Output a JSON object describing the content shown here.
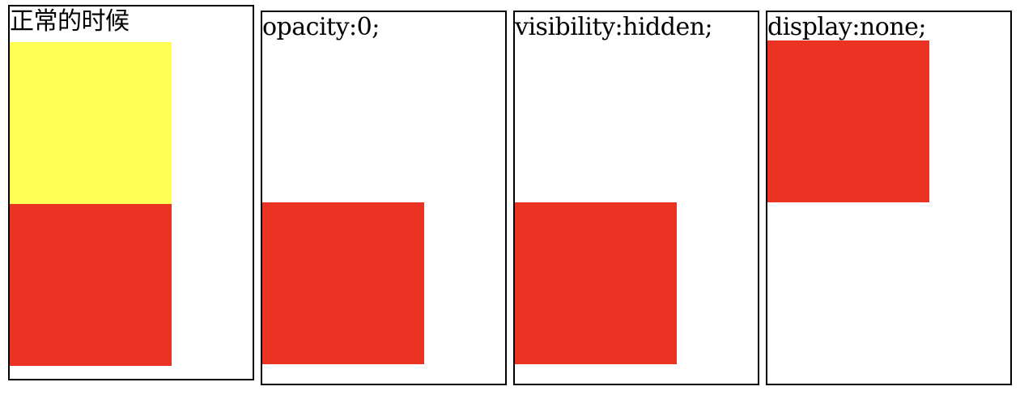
{
  "colors": {
    "yellow": "#FFFF55",
    "red": "#EA3323",
    "border": "#000000"
  },
  "panels": [
    {
      "label": "正常的时候"
    },
    {
      "label": "opacity:0;"
    },
    {
      "label": "visibility:hidden;"
    },
    {
      "label": "display:none;"
    }
  ]
}
